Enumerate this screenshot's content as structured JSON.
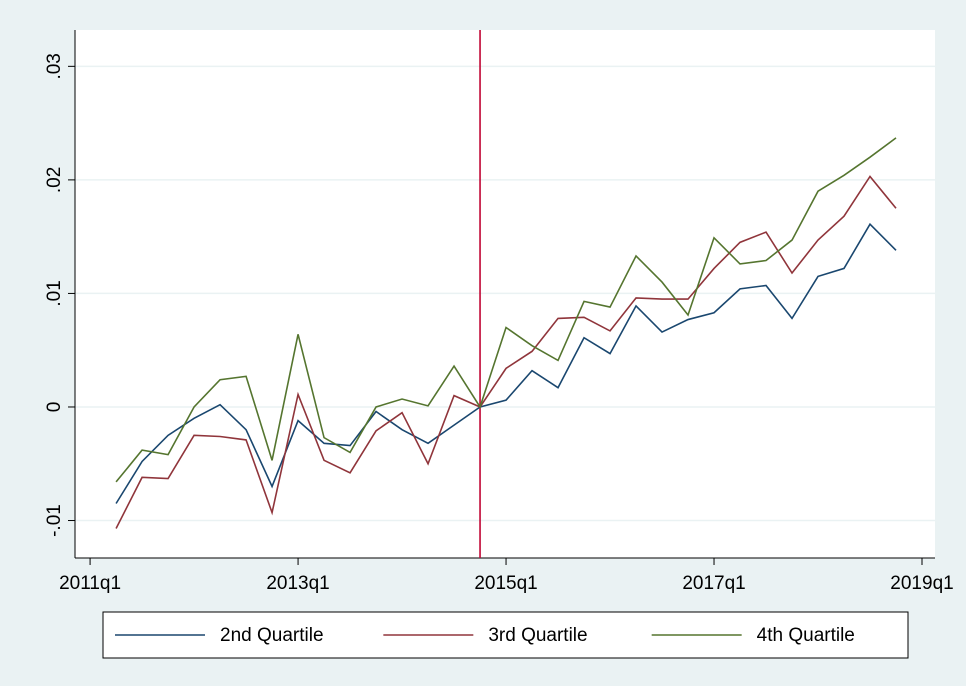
{
  "chart_data": {
    "type": "line",
    "x": [
      205,
      206,
      207,
      208,
      209,
      210,
      211,
      212,
      213,
      214,
      215,
      216,
      217,
      218,
      219,
      220,
      221,
      222,
      223,
      224,
      225,
      226,
      227,
      228,
      229,
      230,
      231,
      232,
      233,
      234,
      235
    ],
    "series": [
      {
        "name": "2nd Quartile",
        "color": "#1a476f",
        "values": [
          -0.0085,
          -0.0048,
          -0.0025,
          -0.001,
          0.0002,
          -0.002,
          -0.007,
          -0.0012,
          -0.0032,
          -0.0034,
          -0.0004,
          -0.002,
          -0.0032,
          -0.0016,
          0,
          0.0006,
          0.0032,
          0.0017,
          0.0061,
          0.0047,
          0.0089,
          0.0066,
          0.0077,
          0.0083,
          0.0104,
          0.0107,
          0.0078,
          0.0115,
          0.0122,
          0.0161,
          0.0138
        ]
      },
      {
        "name": "3rd Quartile",
        "color": "#90353b",
        "values": [
          -0.0107,
          -0.0062,
          -0.0063,
          -0.0025,
          -0.0026,
          -0.0029,
          -0.0093,
          0.0011,
          -0.0047,
          -0.0058,
          -0.0021,
          -0.0005,
          -0.005,
          0.001,
          0,
          0.0034,
          0.0049,
          0.0078,
          0.0079,
          0.0067,
          0.0096,
          0.0095,
          0.0095,
          0.0122,
          0.0145,
          0.0154,
          0.0118,
          0.0147,
          0.0168,
          0.0203,
          0.0175
        ]
      },
      {
        "name": "4th Quartile",
        "color": "#55752f",
        "values": [
          -0.0066,
          -0.0038,
          -0.0042,
          0,
          0.0024,
          0.0027,
          -0.0047,
          0.0064,
          -0.0027,
          -0.004,
          0,
          0.0007,
          0.0001,
          0.0036,
          0,
          0.007,
          0.0054,
          0.0041,
          0.0093,
          0.0088,
          0.0133,
          0.011,
          0.0081,
          0.0149,
          0.0126,
          0.0129,
          0.0147,
          0.019,
          0.0204,
          0.022,
          0.0237
        ]
      }
    ],
    "xlim": [
      203.42,
      236.5
    ],
    "xticks": [
      {
        "value": 204,
        "label": "2011q1"
      },
      {
        "value": 212,
        "label": "2013q1"
      },
      {
        "value": 220,
        "label": "2015q1"
      },
      {
        "value": 228,
        "label": "2017q1"
      },
      {
        "value": 236,
        "label": "2019q1"
      }
    ],
    "ylim": [
      -0.0133,
      0.0332
    ],
    "yticks": [
      {
        "value": -0.01,
        "label": "-.01"
      },
      0,
      {
        "value": 0.01,
        "label": ".01"
      },
      {
        "value": 0.02,
        "label": ".02"
      },
      {
        "value": 0.03,
        "label": ".03"
      }
    ],
    "grid": true,
    "xline": {
      "value": 219,
      "color": "#c10534"
    },
    "legend": "bottom"
  }
}
